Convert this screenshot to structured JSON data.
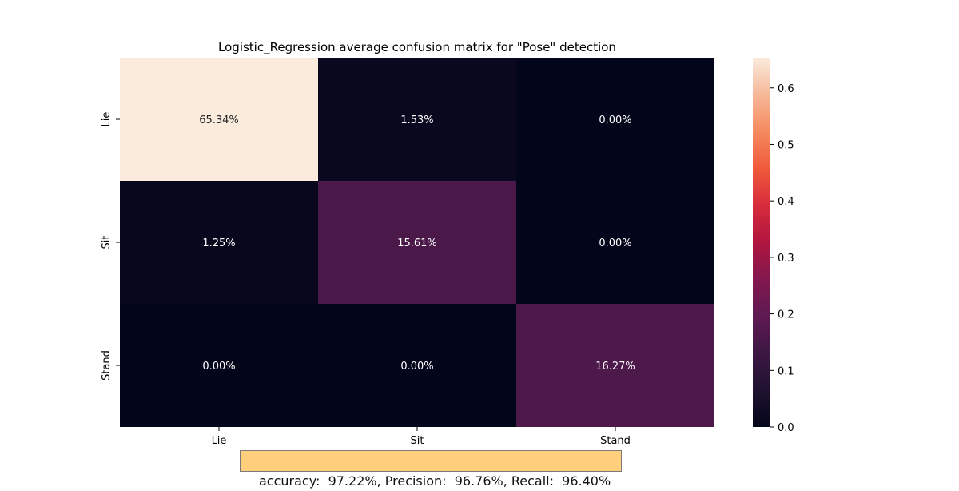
{
  "chart_data": {
    "type": "heatmap",
    "title": "Logistic_Regression average confusion matrix for \"Pose\" detection",
    "x_categories": [
      "Lie",
      "Sit",
      "Stand"
    ],
    "y_categories": [
      "Lie",
      "Sit",
      "Stand"
    ],
    "values": [
      [
        0.6534,
        0.0153,
        0.0
      ],
      [
        0.0125,
        0.1561,
        0.0
      ],
      [
        0.0,
        0.0,
        0.1627
      ]
    ],
    "cell_labels": [
      [
        "65.34%",
        "1.53%",
        "0.00%"
      ],
      [
        "1.25%",
        "15.61%",
        "0.00%"
      ],
      [
        "0.00%",
        "0.00%",
        "16.27%"
      ]
    ],
    "colorbar": {
      "min": 0.0,
      "max": 0.6534,
      "ticks": [
        0.0,
        0.1,
        0.2,
        0.3,
        0.4,
        0.5,
        0.6
      ],
      "tick_labels": [
        "0.0",
        "0.1",
        "0.2",
        "0.3",
        "0.4",
        "0.5",
        "0.6"
      ],
      "colormap": "rocket"
    },
    "xlabel": "",
    "ylabel": ""
  },
  "stats_text": "accuracy:  97.22%, Precision:  96.76%, Recall:  96.40%",
  "colors": {
    "stats_box_bg": "#ffcf7d",
    "stats_box_border": "#7a7a7a"
  }
}
